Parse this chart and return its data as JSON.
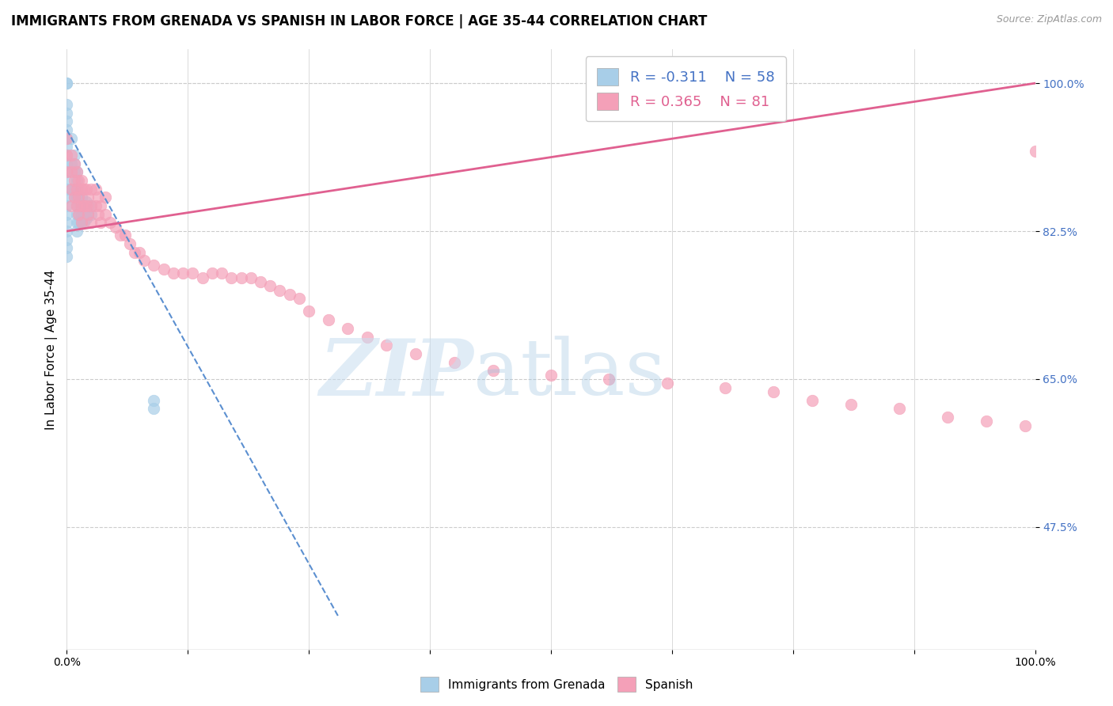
{
  "title": "IMMIGRANTS FROM GRENADA VS SPANISH IN LABOR FORCE | AGE 35-44 CORRELATION CHART",
  "source": "Source: ZipAtlas.com",
  "ylabel": "In Labor Force | Age 35-44",
  "xlim": [
    0.0,
    1.0
  ],
  "ylim": [
    0.33,
    1.04
  ],
  "yticks": [
    0.475,
    0.65,
    0.825,
    1.0
  ],
  "ytick_labels": [
    "47.5%",
    "65.0%",
    "82.5%",
    "100.0%"
  ],
  "xticks": [
    0.0,
    0.125,
    0.25,
    0.375,
    0.5,
    0.625,
    0.75,
    0.875,
    1.0
  ],
  "xtick_labels": [
    "0.0%",
    "",
    "",
    "",
    "",
    "",
    "",
    "",
    "100.0%"
  ],
  "legend_r1": "R = -0.311",
  "legend_n1": "N = 58",
  "legend_r2": "R = 0.365",
  "legend_n2": "N = 81",
  "color_blue": "#A8CEE8",
  "color_pink": "#F4A0B8",
  "color_blue_text": "#4472C4",
  "color_pink_text": "#E06090",
  "color_line_blue": "#5B8FD0",
  "color_line_pink": "#E06090",
  "blue_scatter_x": [
    0.0,
    0.0,
    0.0,
    0.0,
    0.0,
    0.0,
    0.0,
    0.0,
    0.0,
    0.0,
    0.0,
    0.0,
    0.0,
    0.0,
    0.0,
    0.0,
    0.0,
    0.0,
    0.0,
    0.0,
    0.0,
    0.005,
    0.005,
    0.005,
    0.008,
    0.008,
    0.008,
    0.008,
    0.008,
    0.01,
    0.01,
    0.01,
    0.01,
    0.01,
    0.01,
    0.01,
    0.01,
    0.012,
    0.012,
    0.012,
    0.012,
    0.012,
    0.015,
    0.015,
    0.015,
    0.015,
    0.018,
    0.018,
    0.018,
    0.02,
    0.02,
    0.02,
    0.022,
    0.022,
    0.025,
    0.025,
    0.09,
    0.09
  ],
  "blue_scatter_y": [
    1.0,
    1.0,
    0.975,
    0.965,
    0.955,
    0.945,
    0.935,
    0.925,
    0.915,
    0.905,
    0.895,
    0.885,
    0.875,
    0.865,
    0.855,
    0.845,
    0.835,
    0.825,
    0.815,
    0.805,
    0.795,
    0.935,
    0.905,
    0.875,
    0.915,
    0.905,
    0.895,
    0.875,
    0.865,
    0.895,
    0.885,
    0.875,
    0.865,
    0.855,
    0.845,
    0.835,
    0.825,
    0.875,
    0.865,
    0.855,
    0.845,
    0.835,
    0.865,
    0.855,
    0.845,
    0.835,
    0.855,
    0.845,
    0.835,
    0.86,
    0.85,
    0.84,
    0.855,
    0.845,
    0.855,
    0.845,
    0.625,
    0.615
  ],
  "pink_scatter_x": [
    0.0,
    0.0,
    0.0,
    0.005,
    0.005,
    0.005,
    0.005,
    0.008,
    0.008,
    0.008,
    0.01,
    0.01,
    0.01,
    0.012,
    0.012,
    0.012,
    0.015,
    0.015,
    0.015,
    0.015,
    0.018,
    0.018,
    0.02,
    0.02,
    0.022,
    0.022,
    0.025,
    0.025,
    0.025,
    0.03,
    0.03,
    0.032,
    0.032,
    0.035,
    0.035,
    0.04,
    0.04,
    0.045,
    0.05,
    0.055,
    0.06,
    0.065,
    0.07,
    0.075,
    0.08,
    0.09,
    0.1,
    0.11,
    0.12,
    0.13,
    0.14,
    0.15,
    0.16,
    0.17,
    0.18,
    0.19,
    0.2,
    0.21,
    0.22,
    0.23,
    0.24,
    0.25,
    0.27,
    0.29,
    0.31,
    0.33,
    0.36,
    0.4,
    0.44,
    0.5,
    0.56,
    0.62,
    0.68,
    0.73,
    0.77,
    0.81,
    0.86,
    0.91,
    0.95,
    0.99,
    1.0
  ],
  "pink_scatter_y": [
    0.935,
    0.915,
    0.895,
    0.915,
    0.895,
    0.875,
    0.855,
    0.905,
    0.885,
    0.865,
    0.895,
    0.875,
    0.855,
    0.885,
    0.865,
    0.845,
    0.885,
    0.875,
    0.855,
    0.835,
    0.875,
    0.855,
    0.875,
    0.855,
    0.865,
    0.845,
    0.875,
    0.855,
    0.835,
    0.875,
    0.855,
    0.865,
    0.845,
    0.855,
    0.835,
    0.865,
    0.845,
    0.835,
    0.83,
    0.82,
    0.82,
    0.81,
    0.8,
    0.8,
    0.79,
    0.785,
    0.78,
    0.775,
    0.775,
    0.775,
    0.77,
    0.775,
    0.775,
    0.77,
    0.77,
    0.77,
    0.765,
    0.76,
    0.755,
    0.75,
    0.745,
    0.73,
    0.72,
    0.71,
    0.7,
    0.69,
    0.68,
    0.67,
    0.66,
    0.655,
    0.65,
    0.645,
    0.64,
    0.635,
    0.625,
    0.62,
    0.615,
    0.605,
    0.6,
    0.595,
    0.92
  ],
  "blue_line_x": [
    0.0,
    0.28
  ],
  "blue_line_y": [
    0.945,
    0.37
  ],
  "pink_line_x": [
    0.0,
    1.0
  ],
  "pink_line_y": [
    0.825,
    1.0
  ],
  "background_color": "#FFFFFF",
  "grid_color": "#CCCCCC",
  "title_fontsize": 12,
  "axis_fontsize": 11,
  "tick_fontsize": 10,
  "legend_fontsize": 13
}
